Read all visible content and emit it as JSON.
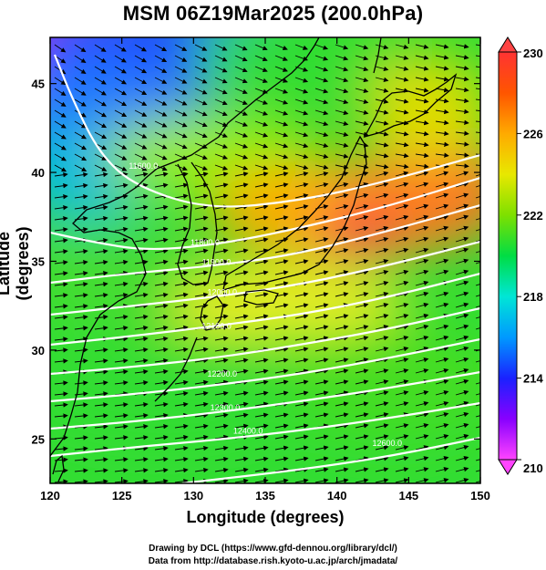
{
  "title": "MSM 06Z19Mar2025 (200.0hPa)",
  "xlabel": "Longitude (degrees)",
  "ylabel": "Latitude  (degrees)",
  "credits": {
    "line1": "Drawing by DCL (https://www.gfd-dennou.org/library/dcl/)",
    "line2": "Data from http://database.rish.kyoto-u.ac.jp/arch/jmadata/"
  },
  "map": {
    "lon_range": [
      120,
      150
    ],
    "lat_range": [
      22.5,
      47.6
    ],
    "x_ticks": [
      120,
      125,
      130,
      135,
      140,
      145,
      150
    ],
    "y_ticks": [
      25,
      30,
      35,
      40,
      45
    ]
  },
  "colorbar": {
    "min": 210,
    "max": 230,
    "ticks": [
      210,
      214,
      218,
      222,
      226,
      230
    ],
    "colors": [
      "#ff44ff",
      "#8800ff",
      "#1a22ff",
      "#0099ff",
      "#00e6d6",
      "#00dd44",
      "#7ee000",
      "#e8e800",
      "#ffaa00",
      "#ff5500",
      "#ff3333"
    ]
  },
  "contour_labels": [
    {
      "text": "11600.0",
      "lon": 126.5,
      "lat": 40.2
    },
    {
      "text": "11800.0",
      "lon": 130.8,
      "lat": 35.9
    },
    {
      "text": "11900.0",
      "lon": 131.6,
      "lat": 34.8
    },
    {
      "text": "12000.0",
      "lon": 132.0,
      "lat": 33.1
    },
    {
      "text": "12100.0",
      "lon": 131.6,
      "lat": 31.2
    },
    {
      "text": "12200.0",
      "lon": 132.0,
      "lat": 28.5
    },
    {
      "text": "12300.0",
      "lon": 132.2,
      "lat": 26.6
    },
    {
      "text": "12400.0",
      "lon": 133.8,
      "lat": 25.3
    },
    {
      "text": "12600.0",
      "lon": 143.5,
      "lat": 24.6
    }
  ],
  "colors": {
    "contour": "#ffffff",
    "coast": "#000000",
    "arrow": "#000000"
  }
}
